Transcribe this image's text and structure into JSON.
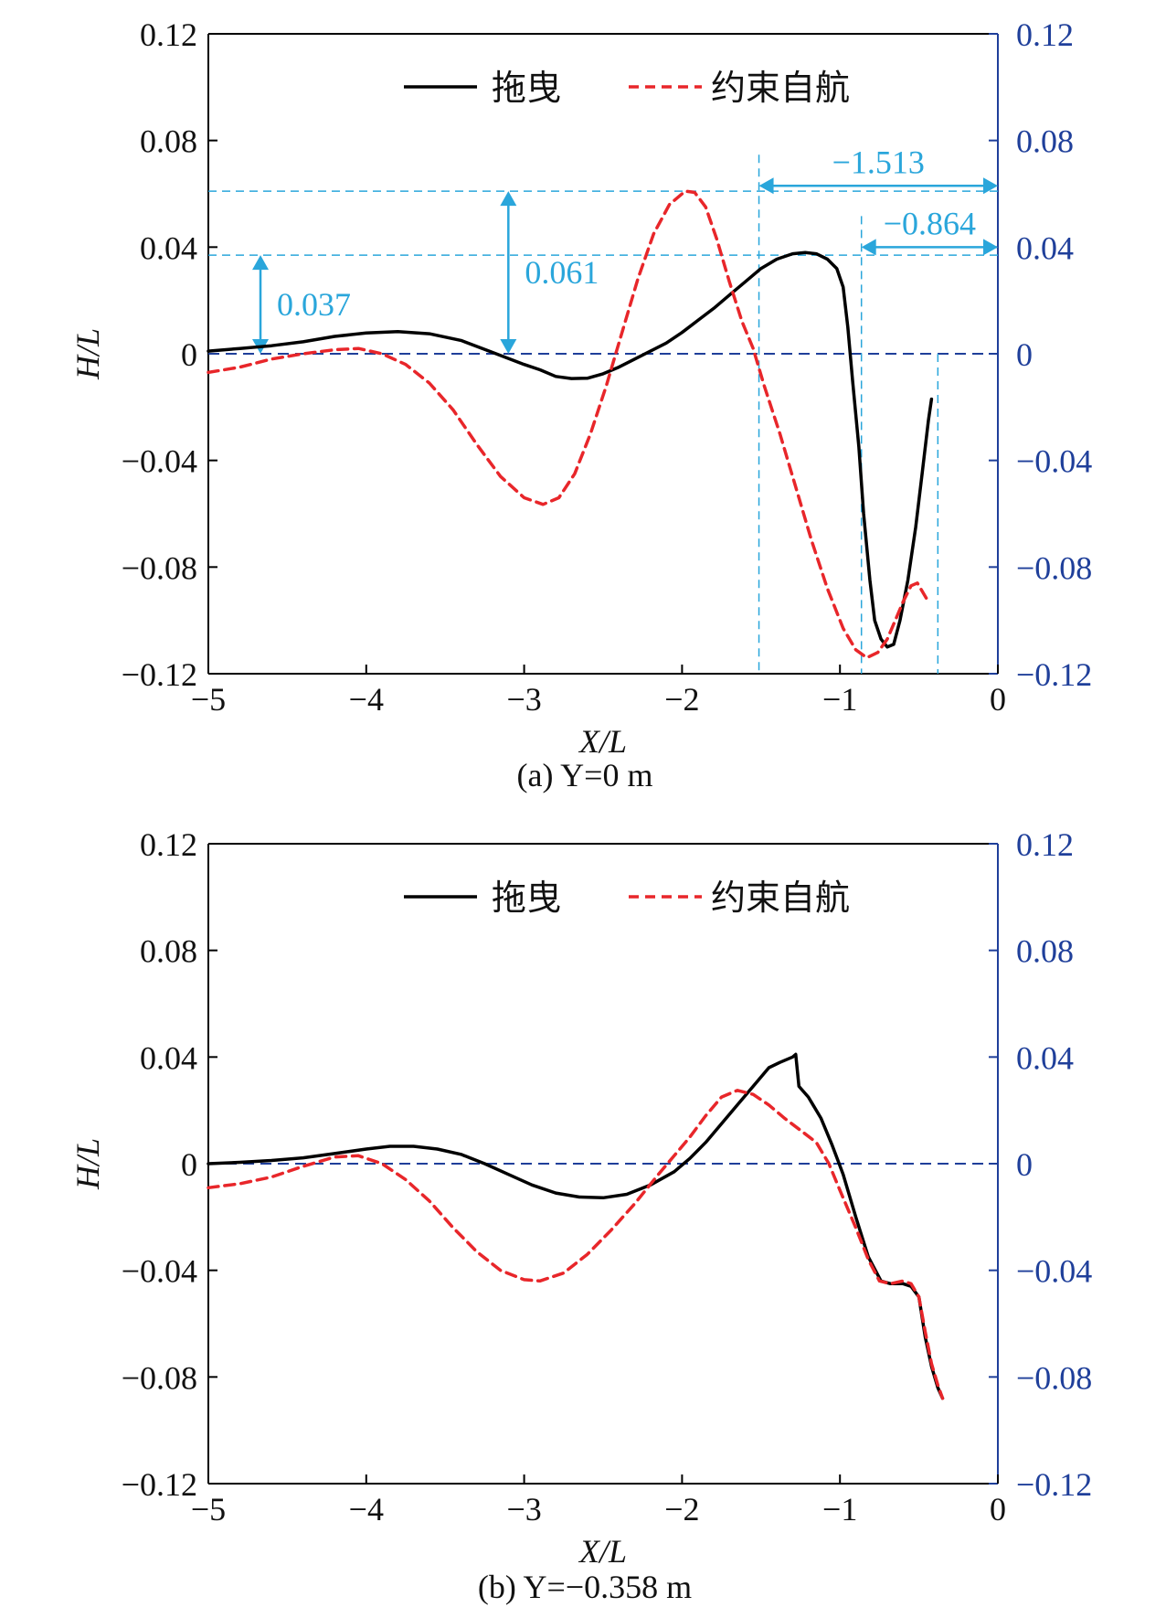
{
  "chart_data": [
    {
      "type": "line",
      "caption": "(a) Y=0 m",
      "xlabel": "X/L",
      "ylabel": "H/L",
      "xlim": [
        -5,
        0
      ],
      "ylim": [
        -0.12,
        0.12
      ],
      "x_ticks": [
        "−5",
        "−4",
        "−3",
        "−2",
        "−1",
        "0"
      ],
      "y_ticks_left": [
        "0.12",
        "0.08",
        "0.04",
        "0",
        "−0.04",
        "−0.08",
        "−0.12"
      ],
      "y_ticks_right": [
        "0.12",
        "0.08",
        "0.04",
        "0",
        "−0.04",
        "−0.08",
        "−0.12"
      ],
      "legend": {
        "position": "top-center",
        "entries": [
          "拖曳",
          "约束自航"
        ]
      },
      "colors": {
        "towed": "#000000",
        "self_propelled": "#e8262a",
        "reference": "#1f3f9a",
        "annotation": "#2aa6db",
        "right_axis": "#1f3f9a"
      },
      "series": [
        {
          "name": "拖曳",
          "style": "solid",
          "points": [
            [
              -5.0,
              0.001
            ],
            [
              -4.8,
              0.002
            ],
            [
              -4.6,
              0.003
            ],
            [
              -4.4,
              0.0045
            ],
            [
              -4.2,
              0.0065
            ],
            [
              -4.0,
              0.0078
            ],
            [
              -3.8,
              0.0083
            ],
            [
              -3.6,
              0.0075
            ],
            [
              -3.4,
              0.005
            ],
            [
              -3.2,
              0.0005
            ],
            [
              -3.0,
              -0.004
            ],
            [
              -2.9,
              -0.006
            ],
            [
              -2.8,
              -0.0085
            ],
            [
              -2.7,
              -0.0093
            ],
            [
              -2.6,
              -0.0092
            ],
            [
              -2.5,
              -0.0075
            ],
            [
              -2.4,
              -0.005
            ],
            [
              -2.3,
              -0.002
            ],
            [
              -2.2,
              0.001
            ],
            [
              -2.1,
              0.004
            ],
            [
              -2.0,
              0.008
            ],
            [
              -1.9,
              0.0125
            ],
            [
              -1.8,
              0.017
            ],
            [
              -1.7,
              0.022
            ],
            [
              -1.6,
              0.027
            ],
            [
              -1.5,
              0.032
            ],
            [
              -1.4,
              0.0355
            ],
            [
              -1.3,
              0.0375
            ],
            [
              -1.22,
              0.038
            ],
            [
              -1.15,
              0.0375
            ],
            [
              -1.08,
              0.0355
            ],
            [
              -1.02,
              0.032
            ],
            [
              -0.98,
              0.025
            ],
            [
              -0.95,
              0.01
            ],
            [
              -0.92,
              -0.01
            ],
            [
              -0.88,
              -0.035
            ],
            [
              -0.85,
              -0.06
            ],
            [
              -0.81,
              -0.085
            ],
            [
              -0.78,
              -0.1
            ],
            [
              -0.74,
              -0.107
            ],
            [
              -0.7,
              -0.11
            ],
            [
              -0.66,
              -0.109
            ],
            [
              -0.62,
              -0.1
            ],
            [
              -0.57,
              -0.085
            ],
            [
              -0.52,
              -0.065
            ],
            [
              -0.48,
              -0.045
            ],
            [
              -0.44,
              -0.025
            ],
            [
              -0.42,
              -0.017
            ]
          ]
        },
        {
          "name": "约束自航",
          "style": "dashed",
          "points": [
            [
              -5.0,
              -0.007
            ],
            [
              -4.8,
              -0.005
            ],
            [
              -4.6,
              -0.002
            ],
            [
              -4.4,
              0.0
            ],
            [
              -4.2,
              0.0015
            ],
            [
              -4.05,
              0.002
            ],
            [
              -3.9,
              0.0
            ],
            [
              -3.75,
              -0.004
            ],
            [
              -3.6,
              -0.011
            ],
            [
              -3.45,
              -0.021
            ],
            [
              -3.3,
              -0.034
            ],
            [
              -3.15,
              -0.046
            ],
            [
              -3.0,
              -0.054
            ],
            [
              -2.88,
              -0.0565
            ],
            [
              -2.78,
              -0.054
            ],
            [
              -2.68,
              -0.045
            ],
            [
              -2.58,
              -0.03
            ],
            [
              -2.48,
              -0.012
            ],
            [
              -2.38,
              0.008
            ],
            [
              -2.28,
              0.028
            ],
            [
              -2.18,
              0.045
            ],
            [
              -2.08,
              0.056
            ],
            [
              -1.98,
              0.061
            ],
            [
              -1.92,
              0.0605
            ],
            [
              -1.85,
              0.055
            ],
            [
              -1.78,
              0.043
            ],
            [
              -1.7,
              0.027
            ],
            [
              -1.62,
              0.012
            ],
            [
              -1.55,
              0.002
            ],
            [
              -1.48,
              -0.012
            ],
            [
              -1.38,
              -0.03
            ],
            [
              -1.28,
              -0.05
            ],
            [
              -1.18,
              -0.07
            ],
            [
              -1.08,
              -0.088
            ],
            [
              -0.98,
              -0.103
            ],
            [
              -0.9,
              -0.111
            ],
            [
              -0.83,
              -0.114
            ],
            [
              -0.76,
              -0.112
            ],
            [
              -0.7,
              -0.107
            ],
            [
              -0.65,
              -0.1
            ],
            [
              -0.6,
              -0.093
            ],
            [
              -0.55,
              -0.087
            ],
            [
              -0.51,
              -0.086
            ],
            [
              -0.47,
              -0.09
            ],
            [
              -0.44,
              -0.093
            ]
          ]
        }
      ],
      "annotations": [
        {
          "label": "0.037",
          "type": "vertical-arrow",
          "x": -4.67,
          "from": 0.0,
          "to": 0.037
        },
        {
          "label": "0.061",
          "type": "vertical-arrow",
          "x": -3.1,
          "from": 0.0,
          "to": 0.061
        },
        {
          "label": "−1.513",
          "type": "horizontal-arrow",
          "y": 0.063,
          "from": -1.513,
          "to": 0.0
        },
        {
          "label": "−0.864",
          "type": "horizontal-arrow",
          "y": 0.04,
          "from": -0.864,
          "to": 0.0
        }
      ]
    },
    {
      "type": "line",
      "caption": "(b) Y=−0.358 m",
      "xlabel": "X/L",
      "ylabel": "H/L",
      "xlim": [
        -5,
        0
      ],
      "ylim": [
        -0.12,
        0.12
      ],
      "x_ticks": [
        "−5",
        "−4",
        "−3",
        "−2",
        "−1",
        "0"
      ],
      "y_ticks_left": [
        "0.12",
        "0.08",
        "0.04",
        "0",
        "−0.04",
        "−0.08",
        "−0.12"
      ],
      "y_ticks_right": [
        "0.12",
        "0.08",
        "0.04",
        "0",
        "−0.04",
        "−0.08",
        "−0.12"
      ],
      "legend": {
        "position": "top-center",
        "entries": [
          "拖曳",
          "约束自航"
        ]
      },
      "colors": {
        "towed": "#000000",
        "self_propelled": "#e8262a",
        "reference": "#1f3f9a",
        "right_axis": "#1f3f9a"
      },
      "series": [
        {
          "name": "拖曳",
          "style": "solid",
          "points": [
            [
              -5.0,
              0.0
            ],
            [
              -4.8,
              0.0005
            ],
            [
              -4.6,
              0.0012
            ],
            [
              -4.4,
              0.0022
            ],
            [
              -4.2,
              0.0038
            ],
            [
              -4.0,
              0.0055
            ],
            [
              -3.85,
              0.0065
            ],
            [
              -3.7,
              0.0065
            ],
            [
              -3.55,
              0.0055
            ],
            [
              -3.4,
              0.0035
            ],
            [
              -3.25,
              0.0
            ],
            [
              -3.1,
              -0.004
            ],
            [
              -2.95,
              -0.008
            ],
            [
              -2.8,
              -0.011
            ],
            [
              -2.65,
              -0.0125
            ],
            [
              -2.5,
              -0.0128
            ],
            [
              -2.35,
              -0.0115
            ],
            [
              -2.2,
              -0.008
            ],
            [
              -2.05,
              -0.003
            ],
            [
              -1.95,
              0.002
            ],
            [
              -1.85,
              0.008
            ],
            [
              -1.75,
              0.015
            ],
            [
              -1.65,
              0.022
            ],
            [
              -1.55,
              0.029
            ],
            [
              -1.45,
              0.036
            ],
            [
              -1.38,
              0.038
            ],
            [
              -1.3,
              0.04
            ],
            [
              -1.28,
              0.041
            ],
            [
              -1.26,
              0.029
            ],
            [
              -1.2,
              0.025
            ],
            [
              -1.12,
              0.017
            ],
            [
              -1.05,
              0.007
            ],
            [
              -0.98,
              -0.004
            ],
            [
              -0.9,
              -0.02
            ],
            [
              -0.82,
              -0.035
            ],
            [
              -0.74,
              -0.044
            ],
            [
              -0.68,
              -0.045
            ],
            [
              -0.6,
              -0.045
            ],
            [
              -0.55,
              -0.046
            ],
            [
              -0.5,
              -0.05
            ],
            [
              -0.46,
              -0.065
            ],
            [
              -0.42,
              -0.076
            ],
            [
              -0.38,
              -0.084
            ],
            [
              -0.35,
              -0.088
            ]
          ]
        },
        {
          "name": "约束自航",
          "style": "dashed",
          "points": [
            [
              -5.0,
              -0.009
            ],
            [
              -4.8,
              -0.0075
            ],
            [
              -4.6,
              -0.005
            ],
            [
              -4.4,
              -0.001
            ],
            [
              -4.2,
              0.0025
            ],
            [
              -4.05,
              0.003
            ],
            [
              -3.9,
              0.0
            ],
            [
              -3.75,
              -0.006
            ],
            [
              -3.6,
              -0.014
            ],
            [
              -3.45,
              -0.024
            ],
            [
              -3.3,
              -0.033
            ],
            [
              -3.15,
              -0.04
            ],
            [
              -3.0,
              -0.0435
            ],
            [
              -2.9,
              -0.044
            ],
            [
              -2.75,
              -0.041
            ],
            [
              -2.6,
              -0.034
            ],
            [
              -2.45,
              -0.025
            ],
            [
              -2.3,
              -0.015
            ],
            [
              -2.15,
              -0.004
            ],
            [
              -2.05,
              0.003
            ],
            [
              -1.95,
              0.01
            ],
            [
              -1.85,
              0.018
            ],
            [
              -1.75,
              0.025
            ],
            [
              -1.65,
              0.0275
            ],
            [
              -1.55,
              0.026
            ],
            [
              -1.45,
              0.022
            ],
            [
              -1.35,
              0.017
            ],
            [
              -1.25,
              0.0125
            ],
            [
              -1.15,
              0.008
            ],
            [
              -1.07,
              0.0
            ],
            [
              -1.0,
              -0.01
            ],
            [
              -0.9,
              -0.024
            ],
            [
              -0.82,
              -0.036
            ],
            [
              -0.75,
              -0.044
            ],
            [
              -0.68,
              -0.045
            ],
            [
              -0.6,
              -0.044
            ],
            [
              -0.55,
              -0.045
            ],
            [
              -0.5,
              -0.05
            ],
            [
              -0.46,
              -0.063
            ],
            [
              -0.42,
              -0.075
            ],
            [
              -0.38,
              -0.083
            ],
            [
              -0.35,
              -0.088
            ]
          ]
        }
      ]
    }
  ]
}
